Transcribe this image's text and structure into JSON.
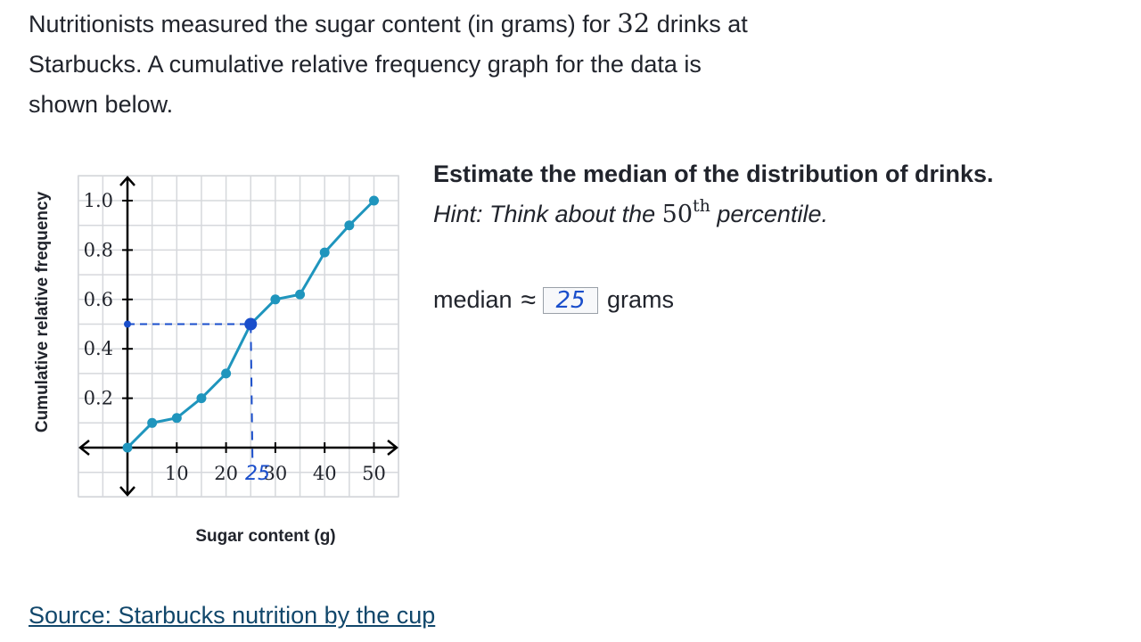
{
  "intro": {
    "line1_before": "Nutritionists measured the sugar content (in grams) for ",
    "count": "32",
    "line1_after": " drinks at",
    "line2": "Starbucks. A cumulative relative frequency graph for the data is",
    "line3": "shown below."
  },
  "question": {
    "title": "Estimate the median of the distribution of drinks.",
    "hint_before": "Hint: Think about the ",
    "hint_num": "50",
    "hint_sup": "th",
    "hint_after": " percentile."
  },
  "answer": {
    "label": "median",
    "symbol": "≈",
    "value": "25",
    "unit": "grams"
  },
  "source_link": "Source: Starbucks nutrition by the cup",
  "annotation": {
    "handwritten_tick": "25"
  },
  "colors": {
    "line": "#1f95bd",
    "highlight": "#1a4ecb",
    "grid": "#d6d8dc",
    "link": "#11476b"
  },
  "chart_data": {
    "type": "line",
    "xlabel": "Sugar content (g)",
    "ylabel": "Cumulative relative frequency",
    "xlim": [
      -10,
      55
    ],
    "ylim": [
      -0.2,
      1.1
    ],
    "x_ticks": [
      10,
      20,
      30,
      40,
      50
    ],
    "y_ticks": [
      "0.2",
      "0.4",
      "0.6",
      "0.8",
      "1.0"
    ],
    "grid": true,
    "points": [
      {
        "x": 0,
        "y": 0
      },
      {
        "x": 5,
        "y": 0.1
      },
      {
        "x": 10,
        "y": 0.12
      },
      {
        "x": 15,
        "y": 0.2
      },
      {
        "x": 20,
        "y": 0.3
      },
      {
        "x": 25,
        "y": 0.5
      },
      {
        "x": 30,
        "y": 0.6
      },
      {
        "x": 35,
        "y": 0.62
      },
      {
        "x": 40,
        "y": 0.79
      },
      {
        "x": 45,
        "y": 0.9
      },
      {
        "x": 50,
        "y": 1.0
      }
    ],
    "highlight_point": {
      "x": 25,
      "y": 0.5
    }
  }
}
